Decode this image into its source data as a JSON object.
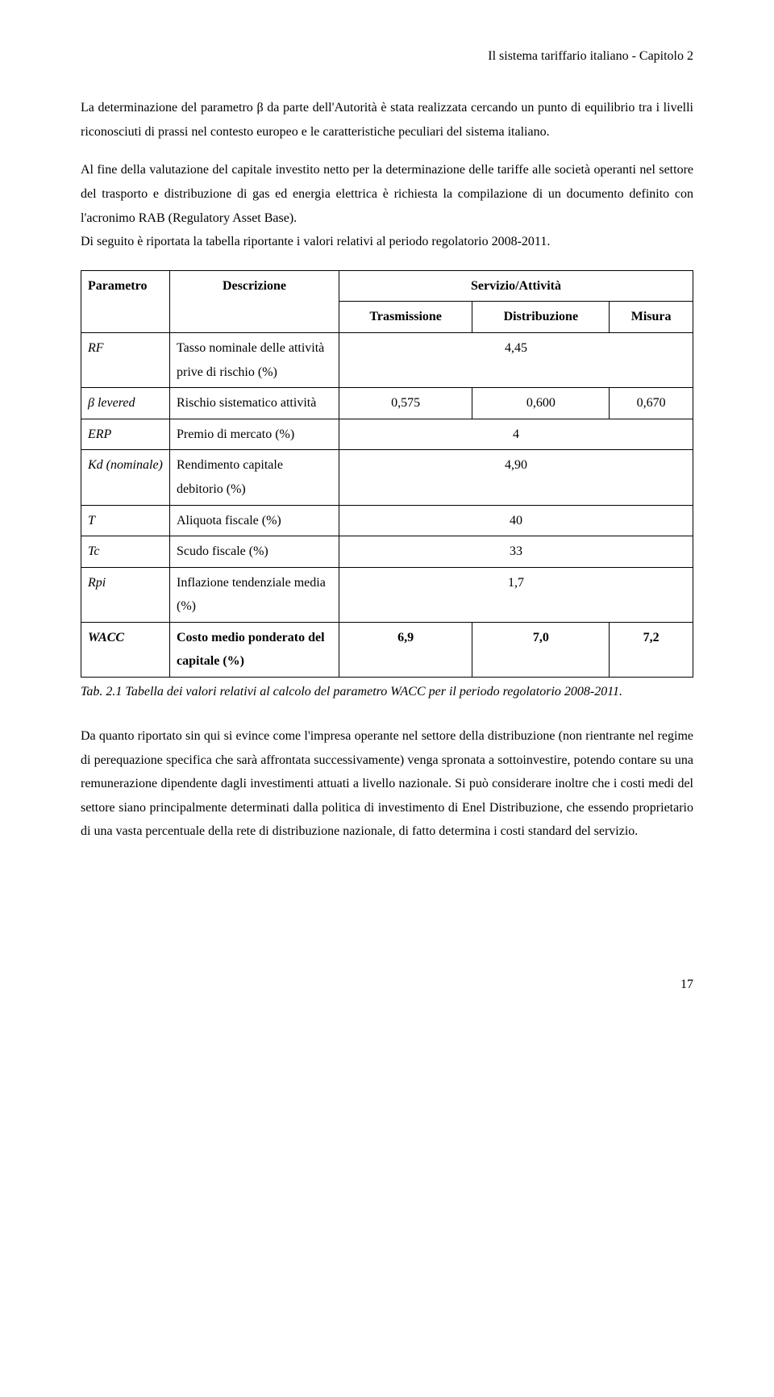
{
  "header": "Il sistema tariffario italiano - Capitolo 2",
  "para1": "La determinazione del parametro β da parte dell'Autorità è stata realizzata cercando un punto di equilibrio tra i livelli riconosciuti di prassi nel contesto europeo e le caratteristiche peculiari del sistema italiano.",
  "para2": "Al fine della valutazione del capitale investito netto per la determinazione delle tariffe alle società operanti nel settore del trasporto e distribuzione di gas ed energia elettrica è richiesta la compilazione di un documento definito con l'acronimo RAB (Regulatory Asset Base).",
  "para3": "Di seguito è riportata la tabella riportante i valori relativi al periodo regolatorio 2008-2011.",
  "table": {
    "head": {
      "parametro": "Parametro",
      "descrizione": "Descrizione",
      "servizio": "Servizio/Attività",
      "trasmissione": "Trasmissione",
      "distribuzione": "Distribuzione",
      "misura": "Misura"
    },
    "rows": {
      "rf": {
        "param": "RF",
        "desc": "Tasso nominale delle attività prive di rischio (%)",
        "span": "4,45"
      },
      "beta": {
        "param": "β levered",
        "desc": "Rischio sistematico attività",
        "t": "0,575",
        "d": "0,600",
        "m": "0,670"
      },
      "erp": {
        "param": "ERP",
        "desc": "Premio di mercato (%)",
        "span": "4"
      },
      "kd": {
        "param": "Kd (nominale)",
        "desc": "Rendimento capitale debitorio (%)",
        "span": "4,90"
      },
      "tax": {
        "param": "T",
        "desc": "Aliquota fiscale (%)",
        "span": "40"
      },
      "tc": {
        "param": "Tc",
        "desc": "Scudo fiscale (%)",
        "span": "33"
      },
      "rpi": {
        "param": "Rpi",
        "desc": "Inflazione tendenziale media (%)",
        "span": "1,7"
      },
      "wacc": {
        "param": "WACC",
        "desc": "Costo medio ponderato del capitale (%)",
        "t": "6,9",
        "d": "7,0",
        "m": "7,2"
      }
    }
  },
  "caption": "Tab. 2.1 Tabella dei valori relativi al calcolo del parametro WACC per il periodo regolatorio 2008-2011.",
  "para4": "Da quanto riportato sin qui si evince come l'impresa operante nel settore della distribuzione (non rientrante nel regime di perequazione specifica che sarà affrontata successivamente) venga spronata a sottoinvestire, potendo contare su una remunerazione dipendente dagli investimenti attuati a livello nazionale. Si può considerare inoltre che i costi medi del settore siano principalmente determinati dalla politica di investimento di Enel Distribuzione, che essendo proprietario di una vasta percentuale della rete di distribuzione nazionale, di fatto determina i costi standard del servizio.",
  "pagenum": "17"
}
